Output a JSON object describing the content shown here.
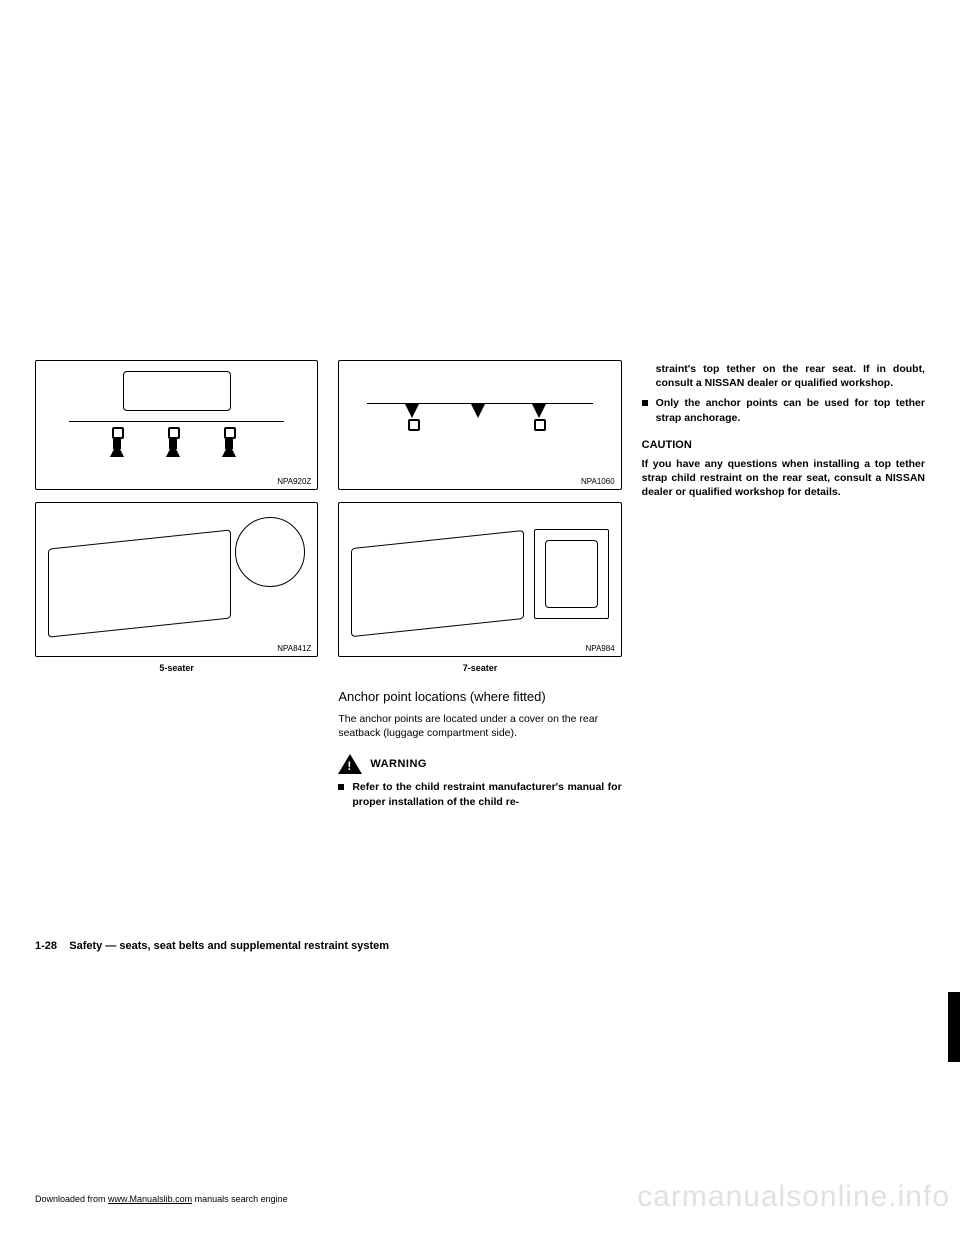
{
  "figures": {
    "f1": {
      "label": "NPA920Z"
    },
    "f2": {
      "label": "NPA841Z",
      "caption": "5-seater"
    },
    "f3": {
      "label": "NPA1060"
    },
    "f4": {
      "label": "NPA984",
      "caption": "7-seater"
    }
  },
  "col2": {
    "heading": "Anchor point locations (where fitted)",
    "body": "The anchor points are located under a cover on the rear seatback (luggage compartment side).",
    "warning_label": "WARNING",
    "bullet1": "Refer to the child restraint manufacturer's manual for proper installation of the child re-"
  },
  "col3": {
    "cont": "straint's top tether on the rear seat. If in doubt, consult a NISSAN dealer or qualified workshop.",
    "bullet2": "Only the anchor points can be used for top tether strap anchorage.",
    "caution_label": "CAUTION",
    "caution_text": "If you have any questions when installing a top tether strap child restraint on the rear seat, consult a NISSAN dealer or qualified workshop for details."
  },
  "footer": {
    "page_num": "1-28",
    "section": "Safety — seats, seat belts and supplemental restraint system"
  },
  "download": {
    "prefix": "Downloaded from ",
    "link": "www.Manualslib.com",
    "suffix": " manuals search engine"
  },
  "watermark": "carmanualsonline.info"
}
